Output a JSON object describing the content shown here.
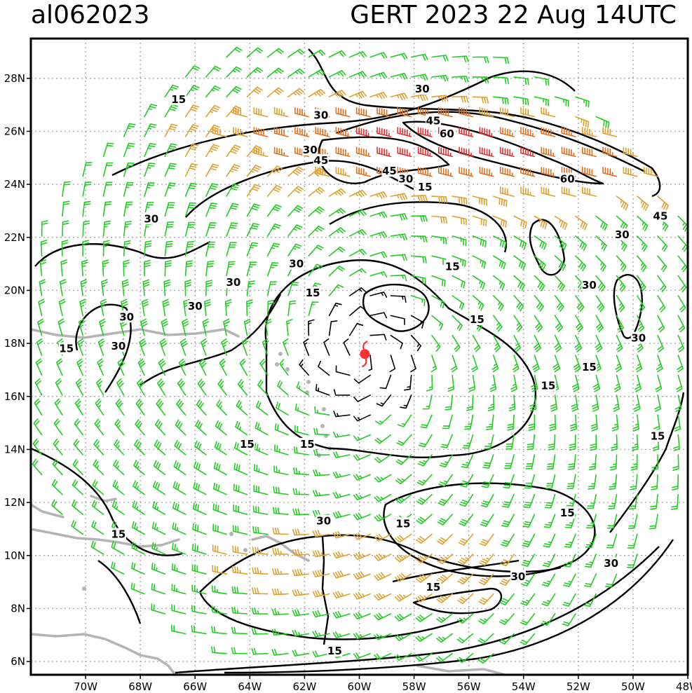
{
  "header": {
    "storm_id": "al062023",
    "storm_info": "GERT 2023 22 Aug 14UTC"
  },
  "map": {
    "lon_range": [
      -72,
      -48
    ],
    "lat_range": [
      5.5,
      29.5
    ],
    "lon_ticks": [
      "70W",
      "68W",
      "66W",
      "64W",
      "62W",
      "60W",
      "58W",
      "56W",
      "54W",
      "52W",
      "50W",
      "48W"
    ],
    "lat_ticks": [
      "6N",
      "8N",
      "10N",
      "12N",
      "14N",
      "16N",
      "18N",
      "20N",
      "22N",
      "24N",
      "26N",
      "28N"
    ],
    "gridlines": true,
    "center": {
      "lon": -59.8,
      "lat": 17.6
    },
    "colors": {
      "barb_weak": "#000000",
      "barb_moderate": "#22cc22",
      "barb_strong": "#e0a030",
      "barb_very_strong": "#e07020",
      "barb_extreme": "#e03030",
      "coastline": "#b4b4b4",
      "contour": "#000000",
      "center_marker": "#ff3030"
    },
    "contour_labels": [
      {
        "text": "15",
        "lon": -66.6,
        "lat": 27.2
      },
      {
        "text": "15",
        "lon": -70.7,
        "lat": 17.8
      },
      {
        "text": "15",
        "lon": -64.1,
        "lat": 14.2
      },
      {
        "text": "15",
        "lon": -68.8,
        "lat": 10.8
      },
      {
        "text": "15",
        "lon": -61.9,
        "lat": 14.2
      },
      {
        "text": "15",
        "lon": -61.7,
        "lat": 19.9
      },
      {
        "text": "15",
        "lon": -56.6,
        "lat": 20.9
      },
      {
        "text": "15",
        "lon": -55.7,
        "lat": 18.9
      },
      {
        "text": "15",
        "lon": -57.6,
        "lat": 23.9
      },
      {
        "text": "15",
        "lon": -53.1,
        "lat": 16.4
      },
      {
        "text": "15",
        "lon": -51.6,
        "lat": 17.1
      },
      {
        "text": "15",
        "lon": -49.1,
        "lat": 14.5
      },
      {
        "text": "15",
        "lon": -58.4,
        "lat": 11.2
      },
      {
        "text": "15",
        "lon": -52.4,
        "lat": 11.6
      },
      {
        "text": "15",
        "lon": -57.3,
        "lat": 8.8
      },
      {
        "text": "15",
        "lon": -60.9,
        "lat": 6.4
      },
      {
        "text": "30",
        "lon": -57.7,
        "lat": 27.6
      },
      {
        "text": "30",
        "lon": -61.4,
        "lat": 26.6
      },
      {
        "text": "30",
        "lon": -61.8,
        "lat": 25.3
      },
      {
        "text": "30",
        "lon": -58.3,
        "lat": 24.2
      },
      {
        "text": "30",
        "lon": -67.6,
        "lat": 22.7
      },
      {
        "text": "30",
        "lon": -62.3,
        "lat": 21.0
      },
      {
        "text": "30",
        "lon": -64.6,
        "lat": 20.3
      },
      {
        "text": "30",
        "lon": -66.0,
        "lat": 19.4
      },
      {
        "text": "30",
        "lon": -68.5,
        "lat": 19.0
      },
      {
        "text": "30",
        "lon": -68.8,
        "lat": 17.9
      },
      {
        "text": "30",
        "lon": -51.6,
        "lat": 20.2
      },
      {
        "text": "30",
        "lon": -50.4,
        "lat": 22.1
      },
      {
        "text": "30",
        "lon": -49.8,
        "lat": 18.2
      },
      {
        "text": "30",
        "lon": -61.3,
        "lat": 11.3
      },
      {
        "text": "30",
        "lon": -54.2,
        "lat": 9.2
      },
      {
        "text": "30",
        "lon": -50.8,
        "lat": 9.7
      },
      {
        "text": "45",
        "lon": -57.3,
        "lat": 26.4
      },
      {
        "text": "45",
        "lon": -61.4,
        "lat": 24.9
      },
      {
        "text": "45",
        "lon": -58.9,
        "lat": 24.5
      },
      {
        "text": "45",
        "lon": -49.0,
        "lat": 22.8
      },
      {
        "text": "60",
        "lon": -56.8,
        "lat": 25.9
      },
      {
        "text": "60",
        "lon": -52.4,
        "lat": 24.2
      }
    ]
  }
}
